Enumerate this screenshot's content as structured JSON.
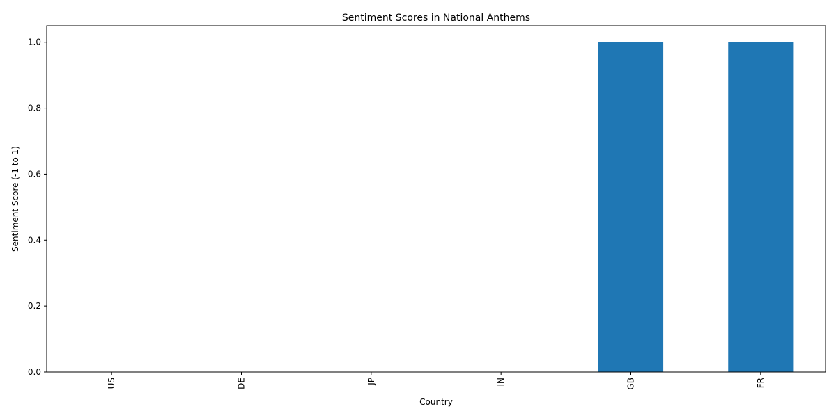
{
  "chart_data": {
    "type": "bar",
    "title": "Sentiment Scores in National Anthems",
    "xlabel": "Country",
    "ylabel": "Sentiment Score (-1 to 1)",
    "categories": [
      "US",
      "DE",
      "JP",
      "IN",
      "GB",
      "FR"
    ],
    "values": [
      0,
      0,
      0,
      0,
      1,
      1
    ],
    "ylim": [
      0,
      1.05
    ],
    "yticks": [
      "0.0",
      "0.2",
      "0.4",
      "0.6",
      "0.8",
      "1.0"
    ],
    "bar_color": "#1f77b4",
    "grid": false,
    "legend": "none"
  }
}
